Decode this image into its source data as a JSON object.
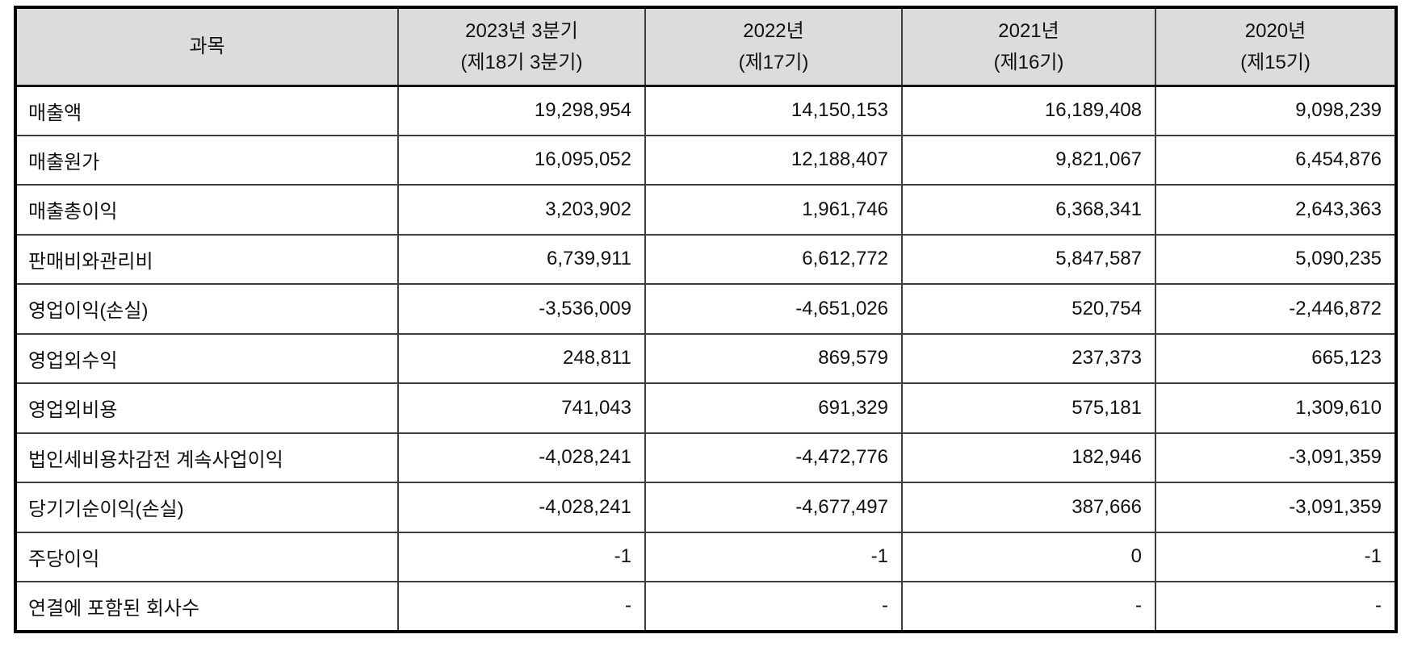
{
  "table": {
    "colors": {
      "header_bg": "#dcdcdc",
      "inner_border": "#3d3d3d",
      "outer_border": "#000000",
      "text": "#111111"
    },
    "columns": [
      {
        "title": "과목",
        "subtitle": ""
      },
      {
        "title": "2023년 3분기",
        "subtitle": "(제18기 3분기)"
      },
      {
        "title": "2022년",
        "subtitle": "(제17기)"
      },
      {
        "title": "2021년",
        "subtitle": "(제16기)"
      },
      {
        "title": "2020년",
        "subtitle": "(제15기)"
      }
    ],
    "rows": [
      {
        "label": "매출액",
        "values": [
          "19,298,954",
          "14,150,153",
          "16,189,408",
          "9,098,239"
        ]
      },
      {
        "label": "매출원가",
        "values": [
          "16,095,052",
          "12,188,407",
          "9,821,067",
          "6,454,876"
        ]
      },
      {
        "label": "매출총이익",
        "values": [
          "3,203,902",
          "1,961,746",
          "6,368,341",
          "2,643,363"
        ]
      },
      {
        "label": "판매비와관리비",
        "values": [
          "6,739,911",
          "6,612,772",
          "5,847,587",
          "5,090,235"
        ]
      },
      {
        "label": "영업이익(손실)",
        "values": [
          "-3,536,009",
          "-4,651,026",
          "520,754",
          "-2,446,872"
        ]
      },
      {
        "label": "영업외수익",
        "values": [
          "248,811",
          "869,579",
          "237,373",
          "665,123"
        ]
      },
      {
        "label": "영업외비용",
        "values": [
          "741,043",
          "691,329",
          "575,181",
          "1,309,610"
        ]
      },
      {
        "label": "법인세비용차감전 계속사업이익",
        "values": [
          "-4,028,241",
          "-4,472,776",
          "182,946",
          "-3,091,359"
        ]
      },
      {
        "label": "당기기순이익(손실)",
        "values": [
          "-4,028,241",
          "-4,677,497",
          "387,666",
          "-3,091,359"
        ]
      },
      {
        "label": "주당이익",
        "values": [
          "-1",
          "-1",
          "0",
          "-1"
        ]
      },
      {
        "label": "연결에 포함된 회사수",
        "values": [
          "-",
          "-",
          "-",
          "-"
        ]
      }
    ]
  }
}
